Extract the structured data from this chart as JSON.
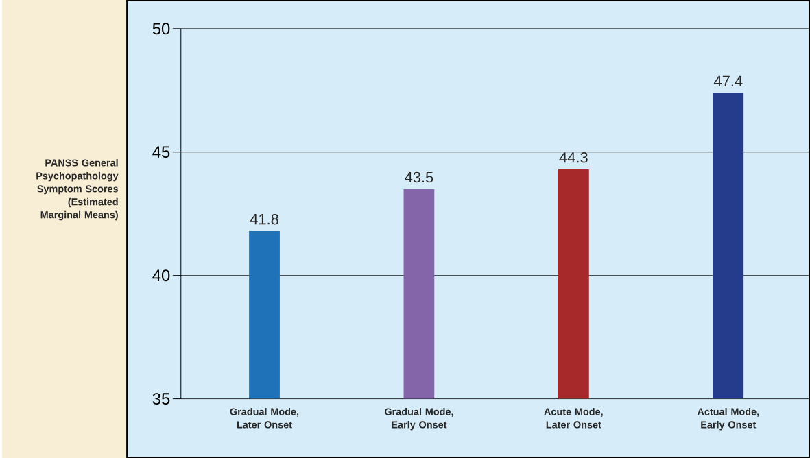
{
  "chart_data": {
    "type": "bar",
    "ylabel": "PANSS General Psychopathology Symptom Scores (Estimated Marginal Means)",
    "categories": [
      "Gradual Mode, Later Onset",
      "Gradual Mode, Early Onset",
      "Acute Mode, Later Onset",
      "Actual Mode, Early Onset"
    ],
    "values": [
      41.8,
      43.5,
      44.3,
      47.4
    ],
    "colors": [
      "#1f72b8",
      "#8565aa",
      "#a8292a",
      "#253c8c"
    ],
    "ylim": [
      35,
      50
    ],
    "yticks": [
      35,
      40,
      45,
      50
    ],
    "grid": "y",
    "data_labels": true
  }
}
